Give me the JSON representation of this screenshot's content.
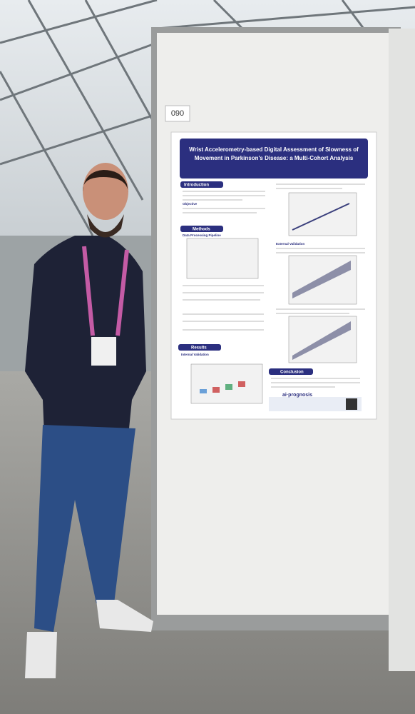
{
  "board": {
    "number": "090"
  },
  "poster": {
    "title_lines": [
      "Wrist Accelerometry-based Digital Assessment of Slowness of",
      "Movement in Parkinson's Disease: a Multi-Cohort Analysis"
    ],
    "sections": {
      "introduction": "Introduction",
      "objective": "Objective",
      "methods": "Methods",
      "pipeline": "Data Processing Pipeline",
      "results": "Results",
      "internal": "Internal Validation",
      "external": "External Validation",
      "conclusion": "Conclusion"
    },
    "logo": "ai·prognosis"
  }
}
